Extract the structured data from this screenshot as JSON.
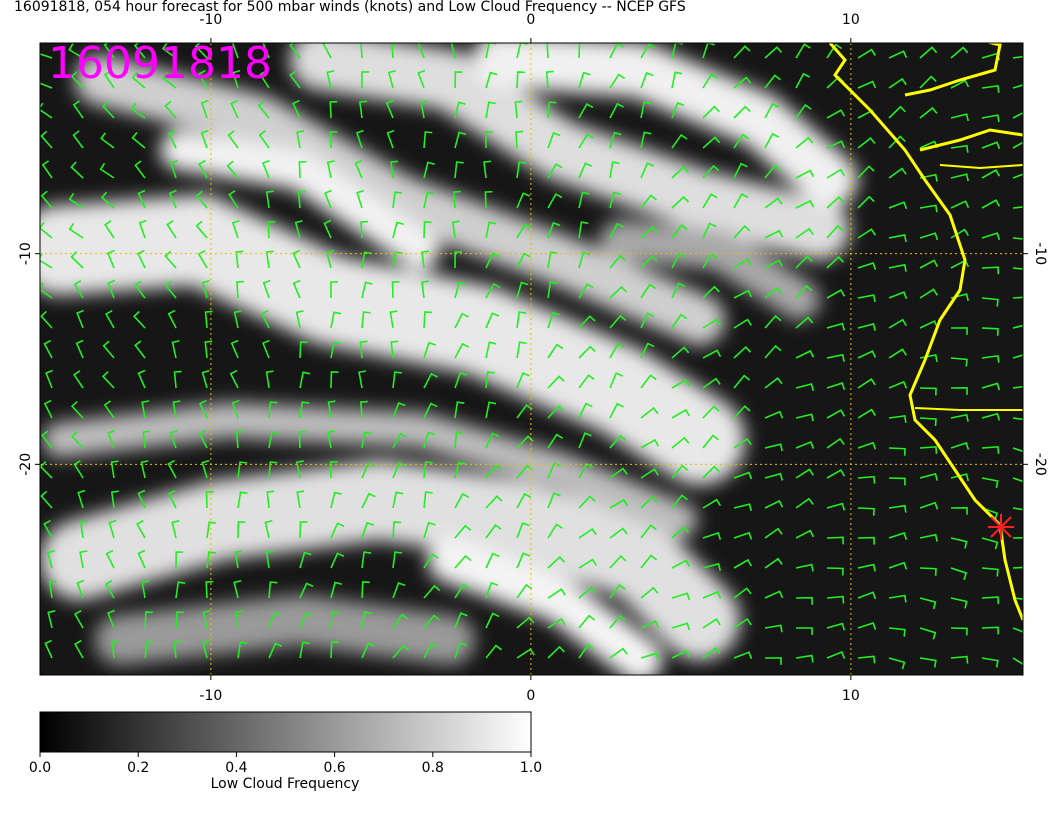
{
  "title": "16091818, 054 hour forecast for 500 mbar winds (knots) and Low Cloud Frequency -- NCEP GFS",
  "timestamp": "16091818",
  "map": {
    "xlim": [
      -15.34,
      15.38
    ],
    "ylim": [
      -30,
      0
    ],
    "xticks": [
      -10,
      0,
      10
    ],
    "yticks": [
      -10,
      -20
    ]
  },
  "colorbar": {
    "title": "Low Cloud Frequency",
    "ticks": [
      {
        "value": 0,
        "label": "0.0"
      },
      {
        "value": 0.2,
        "label": "0.2"
      },
      {
        "value": 0.4,
        "label": "0.4"
      },
      {
        "value": 0.6,
        "label": "0.6"
      },
      {
        "value": 0.8,
        "label": "0.8"
      },
      {
        "value": 1,
        "label": "1.0"
      }
    ]
  }
}
